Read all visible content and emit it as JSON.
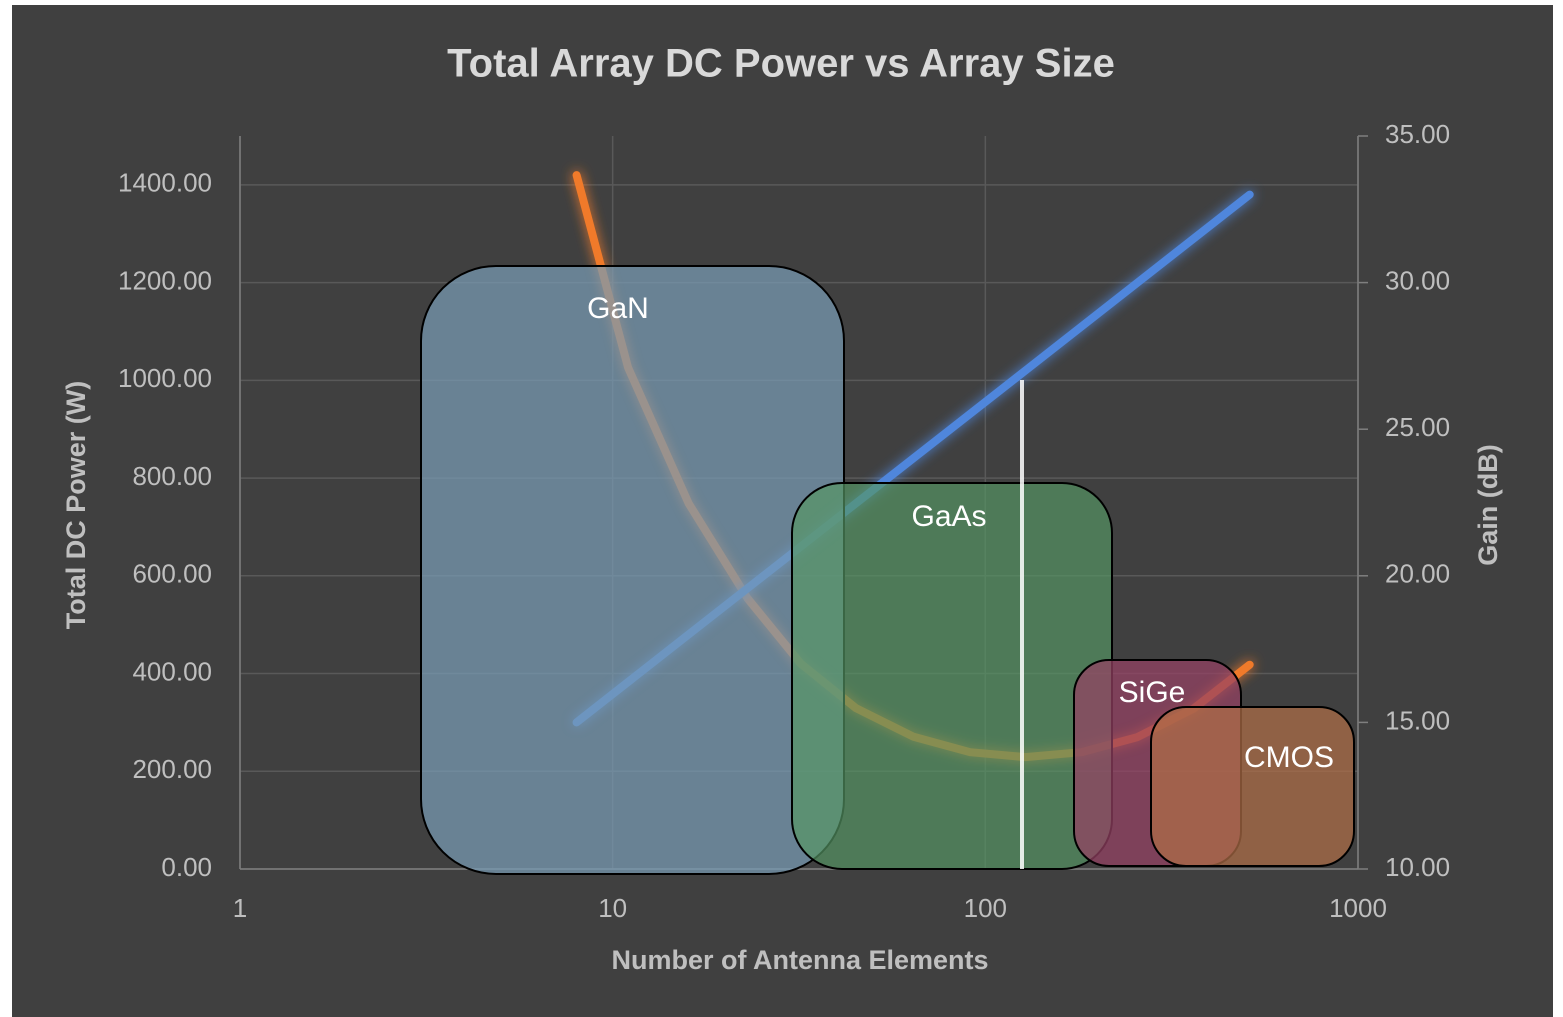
{
  "chart_data": {
    "type": "line",
    "title": "Total Array  DC Power vs Array Size",
    "x_label": "Number of Antenna Elements",
    "y_label": "Total DC Power (W)",
    "y2_label": "Gain (dB)",
    "xscale": "log",
    "xlim": [
      1,
      1000
    ],
    "xticks": [
      1,
      10,
      100,
      1000
    ],
    "ylim": [
      0,
      1500
    ],
    "yticks": [
      {
        "value": 0,
        "label": "0.00"
      },
      {
        "value": 200,
        "label": "200.00"
      },
      {
        "value": 400,
        "label": "400.00"
      },
      {
        "value": 600,
        "label": "600.00"
      },
      {
        "value": 800,
        "label": "800.00"
      },
      {
        "value": 1000,
        "label": "1000.00"
      },
      {
        "value": 1200,
        "label": "1200.00"
      },
      {
        "value": 1400,
        "label": "1400.00"
      }
    ],
    "y2lim": [
      10,
      35
    ],
    "y2ticks": [
      {
        "value": 10,
        "label": "10.00"
      },
      {
        "value": 15,
        "label": "15.00"
      },
      {
        "value": 20,
        "label": "20.00"
      },
      {
        "value": 25,
        "label": "25.00"
      },
      {
        "value": 30,
        "label": "30.00"
      },
      {
        "value": 35,
        "label": "35.00"
      }
    ],
    "grid": true,
    "series": [
      {
        "color": "#f07a2a",
        "x": [
          8,
          11,
          16,
          23,
          32,
          45,
          64,
          91,
          128,
          181,
          256,
          362,
          512
        ],
        "values": [
          1420,
          1026,
          748,
          554,
          420,
          329,
          271,
          239,
          229,
          239,
          270,
          328,
          418
        ]
      },
      {
        "color": "#4f86dc",
        "axis": "y2",
        "x": [
          8,
          16,
          32,
          64,
          128,
          256,
          512
        ],
        "values": [
          15,
          18,
          21,
          24,
          27,
          30,
          33
        ]
      }
    ],
    "annotations": [
      "GaN",
      "GaAs",
      "SiGe",
      "CMOS"
    ]
  }
}
